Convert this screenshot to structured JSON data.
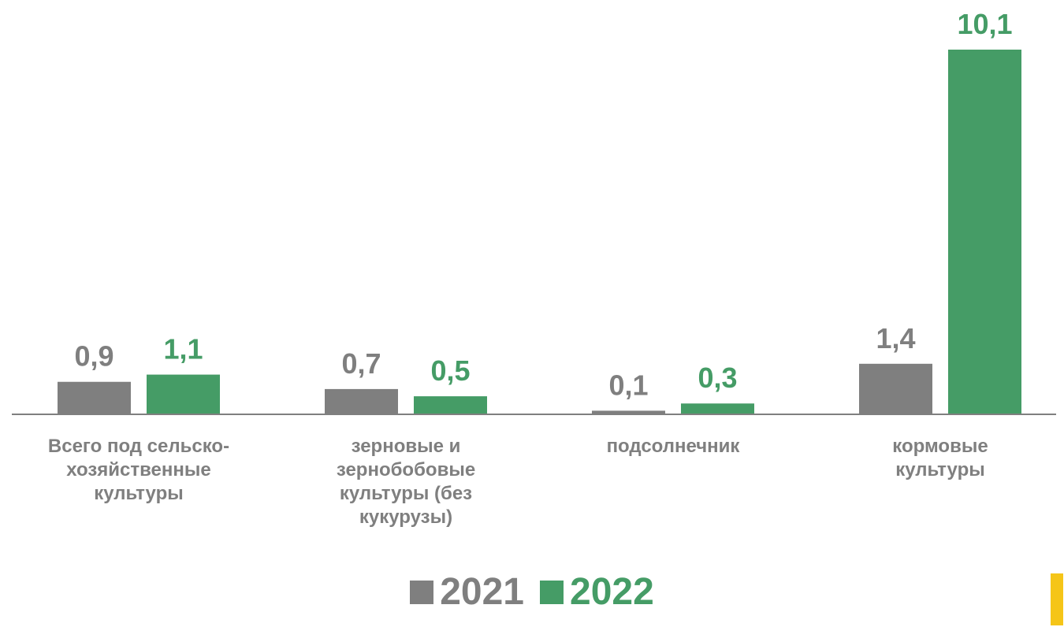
{
  "chart_data": {
    "type": "bar",
    "categories": [
      "Всего под сельско-\nхозяйственные\nкультуры",
      "зерновые и\nзернобобовые\nкультуры (без\nкукурузы)",
      "подсолнечник",
      "кормовые\nкультуры"
    ],
    "series": [
      {
        "name": "2021",
        "values": [
          0.9,
          0.7,
          0.1,
          1.4
        ],
        "labels": [
          "0,9",
          "0,7",
          "0,1",
          "1,4"
        ],
        "color": "#7f7f7f"
      },
      {
        "name": "2022",
        "values": [
          1.1,
          0.5,
          0.3,
          10.1
        ],
        "labels": [
          "1,1",
          "0,5",
          "0,3",
          "10,1"
        ],
        "color": "#459c66"
      }
    ],
    "ylim": [
      0,
      10.1
    ],
    "grid": false,
    "legend_position": "bottom-center"
  },
  "colors": {
    "accent": "#f5c518",
    "axis": "#7f7f7f"
  }
}
